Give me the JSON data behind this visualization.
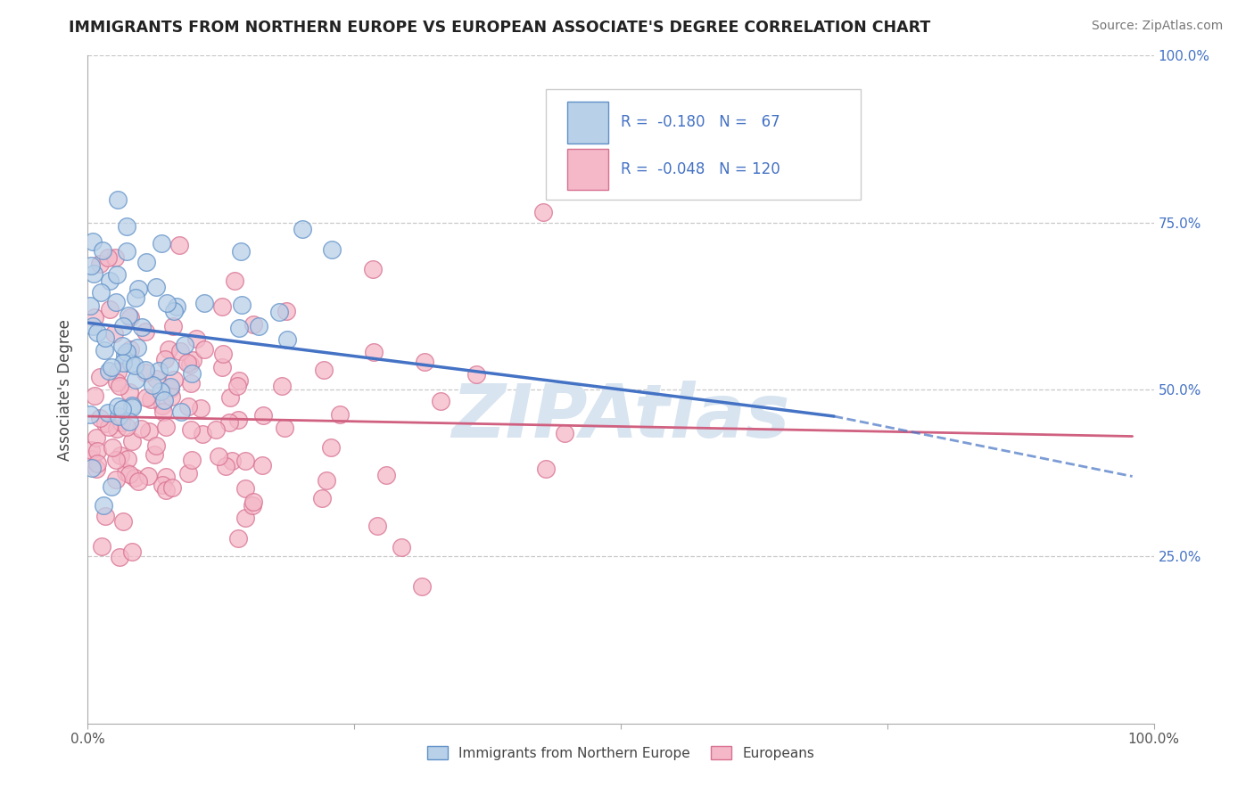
{
  "title": "IMMIGRANTS FROM NORTHERN EUROPE VS EUROPEAN ASSOCIATE'S DEGREE CORRELATION CHART",
  "source": "Source: ZipAtlas.com",
  "ylabel": "Associate's Degree",
  "legend_label1": "Immigrants from Northern Europe",
  "legend_label2": "Europeans",
  "R1": "-0.180",
  "N1": "67",
  "R2": "-0.048",
  "N2": "120",
  "blue_fill": "#b8d0e8",
  "blue_edge": "#6090c8",
  "pink_fill": "#f4b8c8",
  "pink_edge": "#d87090",
  "blue_line_color": "#4472c4",
  "pink_line_color": "#d06080",
  "background_color": "#ffffff",
  "grid_color": "#c8c8c8",
  "right_tick_color": "#4472c4",
  "watermark_color": "#d8e4f0",
  "title_color": "#222222",
  "source_color": "#777777",
  "axis_label_color": "#444444",
  "tick_label_color": "#555555"
}
